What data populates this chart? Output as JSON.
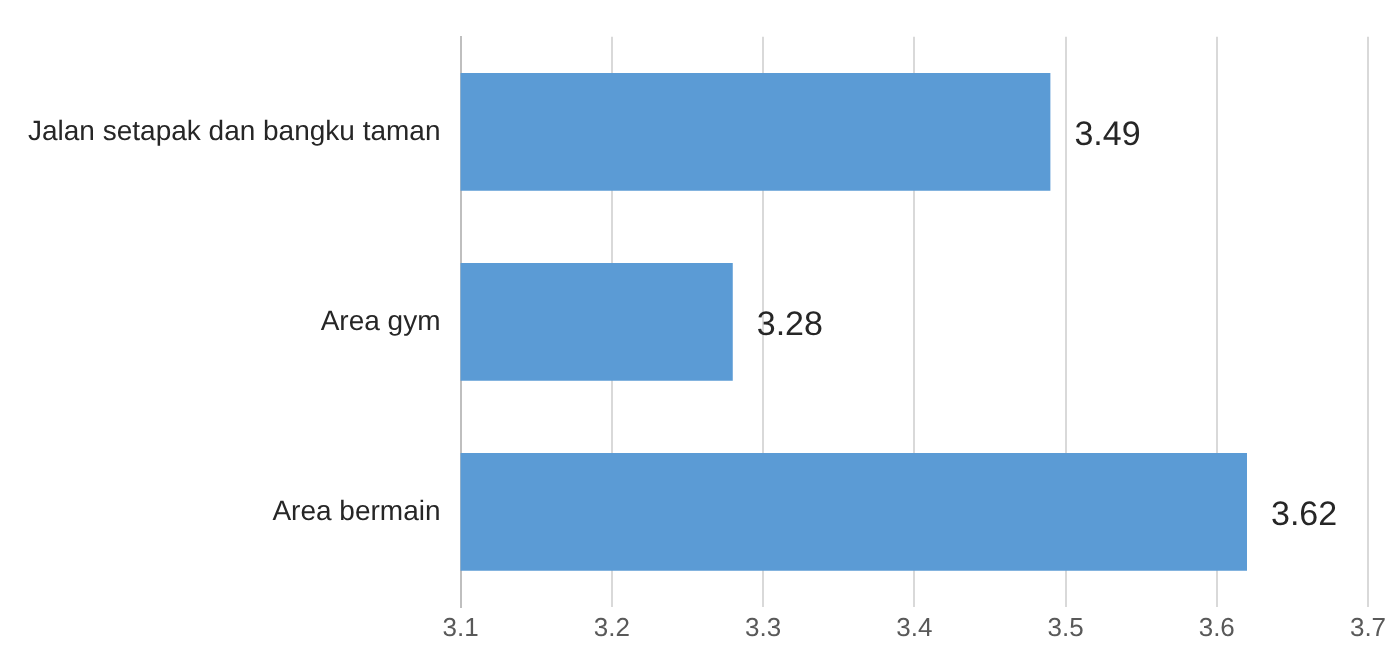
{
  "chart_data": {
    "type": "bar",
    "orientation": "horizontal",
    "categories": [
      "Jalan setapak dan bangku taman",
      "Area gym",
      "Area bermain"
    ],
    "values": [
      3.49,
      3.28,
      3.62
    ],
    "color": "#5b9bd5",
    "xlim": [
      3.1,
      3.7
    ],
    "xticks": [
      3.1,
      3.2,
      3.3,
      3.4,
      3.5,
      3.6,
      3.7
    ],
    "grid": "x",
    "data_labels": true,
    "legend": false
  }
}
